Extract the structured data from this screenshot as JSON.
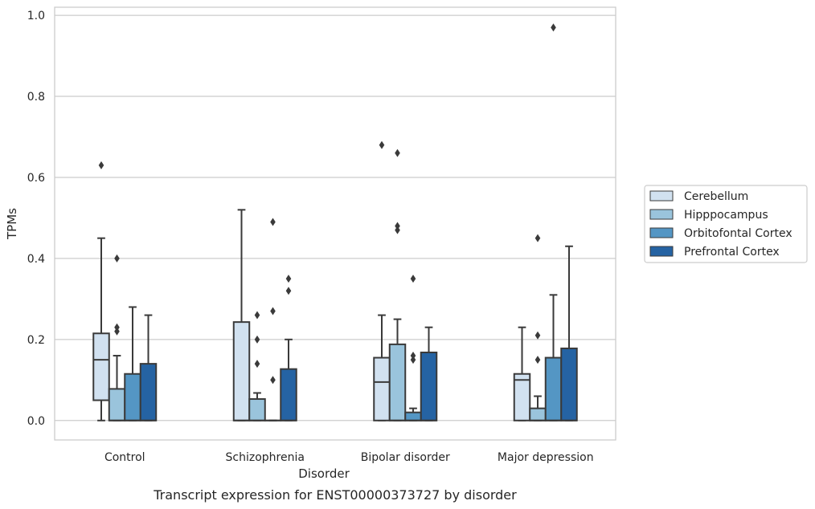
{
  "chart_data": {
    "type": "box",
    "xlabel": "Disorder",
    "ylabel": "TPMs",
    "caption": "Transcript expression for ENST00000373727 by disorder",
    "ylim": [
      -0.048,
      1.02
    ],
    "yticks": [
      0.0,
      0.2,
      0.4,
      0.6,
      0.8,
      1.0
    ],
    "ytick_labels": [
      "0.0",
      "0.2",
      "0.4",
      "0.6",
      "0.8",
      "1.0"
    ],
    "grid": "horizontal",
    "legend_position": "right",
    "categories": [
      "Control",
      "Schizophrenia",
      "Bipolar disorder",
      "Major depression"
    ],
    "series": [
      {
        "name": "Cerebellum",
        "color": "#d1e1f0",
        "boxes": [
          {
            "whislo": 0.0,
            "q1": 0.05,
            "med": 0.15,
            "q3": 0.215,
            "whishi": 0.45,
            "fliers": [
              0.63
            ]
          },
          {
            "whislo": 0.0,
            "q1": 0.0,
            "med": 0.0,
            "q3": 0.243,
            "whishi": 0.52,
            "fliers": []
          },
          {
            "whislo": 0.0,
            "q1": 0.0,
            "med": 0.095,
            "q3": 0.155,
            "whishi": 0.26,
            "fliers": [
              0.68
            ]
          },
          {
            "whislo": 0.0,
            "q1": 0.0,
            "med": 0.1,
            "q3": 0.115,
            "whishi": 0.23,
            "fliers": []
          }
        ]
      },
      {
        "name": "Hipppocampus",
        "color": "#9ac4dc",
        "boxes": [
          {
            "whislo": 0.0,
            "q1": 0.0,
            "med": 0.0,
            "q3": 0.078,
            "whishi": 0.16,
            "fliers": [
              0.22,
              0.23,
              0.4
            ]
          },
          {
            "whislo": 0.0,
            "q1": 0.0,
            "med": 0.0,
            "q3": 0.053,
            "whishi": 0.068,
            "fliers": [
              0.14,
              0.2,
              0.26
            ]
          },
          {
            "whislo": 0.0,
            "q1": 0.0,
            "med": 0.0,
            "q3": 0.188,
            "whishi": 0.25,
            "fliers": [
              0.47,
              0.48,
              0.66
            ]
          },
          {
            "whislo": 0.0,
            "q1": 0.0,
            "med": 0.0,
            "q3": 0.03,
            "whishi": 0.06,
            "fliers": [
              0.15,
              0.21,
              0.45
            ]
          }
        ]
      },
      {
        "name": "Orbitofontal Cortex",
        "color": "#5496c4",
        "boxes": [
          {
            "whislo": 0.0,
            "q1": 0.0,
            "med": 0.0,
            "q3": 0.115,
            "whishi": 0.28,
            "fliers": []
          },
          {
            "whislo": 0.0,
            "q1": 0.0,
            "med": 0.0,
            "q3": 0.0,
            "whishi": 0.0,
            "fliers": [
              0.1,
              0.27,
              0.49
            ]
          },
          {
            "whislo": 0.0,
            "q1": 0.0,
            "med": 0.0,
            "q3": 0.02,
            "whishi": 0.03,
            "fliers": [
              0.15,
              0.16,
              0.35
            ]
          },
          {
            "whislo": 0.0,
            "q1": 0.0,
            "med": 0.0,
            "q3": 0.155,
            "whishi": 0.31,
            "fliers": [
              0.97
            ]
          }
        ]
      },
      {
        "name": "Prefrontal Cortex",
        "color": "#2563a3",
        "boxes": [
          {
            "whislo": 0.0,
            "q1": 0.0,
            "med": 0.0,
            "q3": 0.14,
            "whishi": 0.26,
            "fliers": []
          },
          {
            "whislo": 0.0,
            "q1": 0.0,
            "med": 0.0,
            "q3": 0.127,
            "whishi": 0.2,
            "fliers": [
              0.32,
              0.35
            ]
          },
          {
            "whislo": 0.0,
            "q1": 0.0,
            "med": 0.0,
            "q3": 0.168,
            "whishi": 0.23,
            "fliers": []
          },
          {
            "whislo": 0.0,
            "q1": 0.0,
            "med": 0.0,
            "q3": 0.178,
            "whishi": 0.43,
            "fliers": []
          }
        ]
      }
    ]
  }
}
